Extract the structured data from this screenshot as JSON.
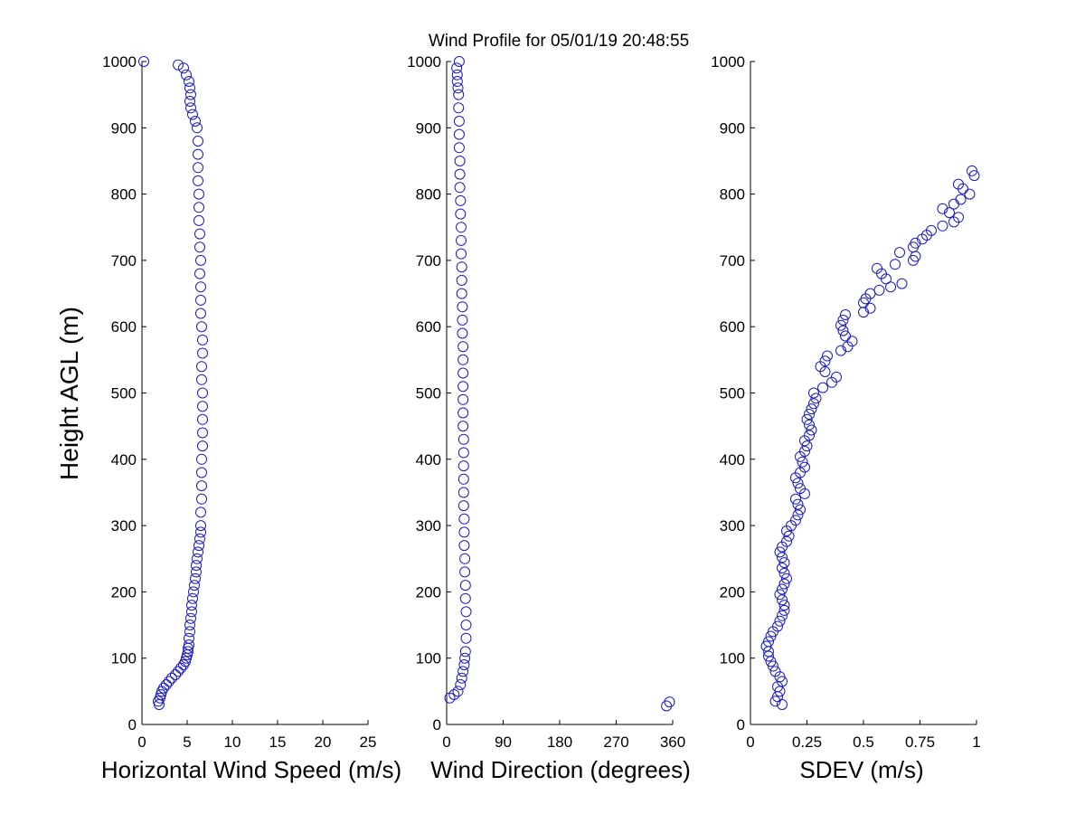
{
  "title": "Wind Profile for  05/01/19 20:48:55",
  "ylabel": "Height AGL (m)",
  "chart_data": [
    {
      "type": "scatter",
      "xlabel": "Horizontal Wind Speed (m/s)",
      "ylabel": "Height AGL (m)",
      "xlim": [
        0,
        25
      ],
      "ylim": [
        0,
        1000
      ],
      "xticks": [
        0,
        5,
        10,
        15,
        20,
        25
      ],
      "xtick_labels": [
        "0",
        "5",
        "10",
        "15",
        "20",
        "25"
      ],
      "yticks": [
        0,
        100,
        200,
        300,
        400,
        500,
        600,
        700,
        800,
        900,
        1000
      ],
      "ytick_labels": [
        "0",
        "100",
        "200",
        "300",
        "400",
        "500",
        "600",
        "700",
        "800",
        "900",
        "1000"
      ],
      "grid": false,
      "marker": "open-circle",
      "color": "#1a1acc",
      "points": [
        [
          1.9,
          30
        ],
        [
          1.8,
          35
        ],
        [
          2.0,
          40
        ],
        [
          2.1,
          45
        ],
        [
          2.2,
          50
        ],
        [
          2.4,
          55
        ],
        [
          2.7,
          60
        ],
        [
          3.0,
          65
        ],
        [
          3.3,
          70
        ],
        [
          3.7,
          75
        ],
        [
          4.0,
          80
        ],
        [
          4.3,
          85
        ],
        [
          4.6,
          90
        ],
        [
          4.8,
          95
        ],
        [
          4.9,
          100
        ],
        [
          5.0,
          105
        ],
        [
          5.1,
          110
        ],
        [
          5.1,
          115
        ],
        [
          5.2,
          120
        ],
        [
          5.2,
          130
        ],
        [
          5.3,
          140
        ],
        [
          5.3,
          150
        ],
        [
          5.4,
          160
        ],
        [
          5.5,
          170
        ],
        [
          5.5,
          180
        ],
        [
          5.6,
          190
        ],
        [
          5.7,
          200
        ],
        [
          5.8,
          210
        ],
        [
          5.9,
          220
        ],
        [
          6.0,
          230
        ],
        [
          6.0,
          240
        ],
        [
          6.1,
          250
        ],
        [
          6.2,
          260
        ],
        [
          6.3,
          270
        ],
        [
          6.4,
          280
        ],
        [
          6.5,
          290
        ],
        [
          6.5,
          300
        ],
        [
          6.5,
          320
        ],
        [
          6.6,
          340
        ],
        [
          6.6,
          360
        ],
        [
          6.6,
          380
        ],
        [
          6.6,
          400
        ],
        [
          6.7,
          420
        ],
        [
          6.7,
          440
        ],
        [
          6.7,
          460
        ],
        [
          6.7,
          480
        ],
        [
          6.7,
          500
        ],
        [
          6.6,
          520
        ],
        [
          6.6,
          540
        ],
        [
          6.7,
          560
        ],
        [
          6.7,
          580
        ],
        [
          6.6,
          600
        ],
        [
          6.5,
          620
        ],
        [
          6.5,
          640
        ],
        [
          6.5,
          660
        ],
        [
          6.4,
          680
        ],
        [
          6.5,
          700
        ],
        [
          6.4,
          720
        ],
        [
          6.4,
          740
        ],
        [
          6.3,
          760
        ],
        [
          6.3,
          780
        ],
        [
          6.3,
          800
        ],
        [
          6.2,
          820
        ],
        [
          6.2,
          840
        ],
        [
          6.2,
          860
        ],
        [
          6.2,
          880
        ],
        [
          6.1,
          900
        ],
        [
          5.9,
          910
        ],
        [
          5.6,
          920
        ],
        [
          5.4,
          930
        ],
        [
          5.3,
          940
        ],
        [
          5.4,
          950
        ],
        [
          5.3,
          960
        ],
        [
          5.2,
          970
        ],
        [
          4.9,
          980
        ],
        [
          4.6,
          990
        ],
        [
          4.0,
          995
        ],
        [
          0.2,
          1000
        ]
      ]
    },
    {
      "type": "scatter",
      "xlabel": "Wind Direction (degrees)",
      "xlim": [
        0,
        360
      ],
      "ylim": [
        0,
        1000
      ],
      "xticks": [
        0,
        90,
        180,
        270,
        360
      ],
      "xtick_labels": [
        "0",
        "90",
        "180",
        "270",
        "360"
      ],
      "yticks": [
        0,
        100,
        200,
        300,
        400,
        500,
        600,
        700,
        800,
        900,
        1000
      ],
      "ytick_labels": [
        "0",
        "100",
        "200",
        "300",
        "400",
        "500",
        "600",
        "700",
        "800",
        "900",
        "1000"
      ],
      "grid": false,
      "marker": "open-circle",
      "color": "#1a1acc",
      "points": [
        [
          350,
          28
        ],
        [
          355,
          34
        ],
        [
          5,
          40
        ],
        [
          12,
          45
        ],
        [
          18,
          50
        ],
        [
          22,
          60
        ],
        [
          24,
          70
        ],
        [
          26,
          80
        ],
        [
          28,
          90
        ],
        [
          29,
          100
        ],
        [
          30,
          110
        ],
        [
          31,
          130
        ],
        [
          31,
          150
        ],
        [
          31,
          170
        ],
        [
          30,
          190
        ],
        [
          30,
          210
        ],
        [
          29,
          230
        ],
        [
          29,
          250
        ],
        [
          28,
          270
        ],
        [
          28,
          290
        ],
        [
          28,
          310
        ],
        [
          27,
          330
        ],
        [
          27,
          350
        ],
        [
          27,
          370
        ],
        [
          27,
          390
        ],
        [
          27,
          410
        ],
        [
          27,
          430
        ],
        [
          26,
          450
        ],
        [
          26,
          470
        ],
        [
          26,
          490
        ],
        [
          26,
          510
        ],
        [
          26,
          530
        ],
        [
          26,
          550
        ],
        [
          26,
          570
        ],
        [
          25,
          590
        ],
        [
          25,
          610
        ],
        [
          25,
          630
        ],
        [
          24,
          650
        ],
        [
          24,
          670
        ],
        [
          24,
          690
        ],
        [
          23,
          710
        ],
        [
          23,
          730
        ],
        [
          23,
          750
        ],
        [
          22,
          770
        ],
        [
          22,
          790
        ],
        [
          21,
          810
        ],
        [
          21,
          830
        ],
        [
          21,
          850
        ],
        [
          20,
          870
        ],
        [
          20,
          890
        ],
        [
          20,
          910
        ],
        [
          19,
          930
        ],
        [
          19,
          950
        ],
        [
          18,
          960
        ],
        [
          17,
          970
        ],
        [
          17,
          980
        ],
        [
          16,
          990
        ],
        [
          20,
          1000
        ]
      ]
    },
    {
      "type": "scatter",
      "xlabel": "SDEV  (m/s)",
      "xlim": [
        0,
        1
      ],
      "ylim": [
        0,
        1000
      ],
      "xticks": [
        0,
        0.25,
        0.5,
        0.75,
        1
      ],
      "xtick_labels": [
        "0",
        "0.25",
        "0.5",
        "0.75",
        "1"
      ],
      "yticks": [
        0,
        100,
        200,
        300,
        400,
        500,
        600,
        700,
        800,
        900,
        1000
      ],
      "ytick_labels": [
        "0",
        "100",
        "200",
        "300",
        "400",
        "500",
        "600",
        "700",
        "800",
        "900",
        "1000"
      ],
      "grid": false,
      "marker": "open-circle",
      "color": "#1a1acc",
      "points": [
        [
          0.14,
          30
        ],
        [
          0.11,
          35
        ],
        [
          0.12,
          42
        ],
        [
          0.13,
          50
        ],
        [
          0.12,
          57
        ],
        [
          0.14,
          65
        ],
        [
          0.13,
          72
        ],
        [
          0.11,
          80
        ],
        [
          0.1,
          88
        ],
        [
          0.09,
          95
        ],
        [
          0.08,
          103
        ],
        [
          0.08,
          110
        ],
        [
          0.07,
          118
        ],
        [
          0.08,
          125
        ],
        [
          0.09,
          133
        ],
        [
          0.1,
          140
        ],
        [
          0.12,
          148
        ],
        [
          0.13,
          156
        ],
        [
          0.14,
          164
        ],
        [
          0.15,
          172
        ],
        [
          0.15,
          180
        ],
        [
          0.14,
          188
        ],
        [
          0.13,
          196
        ],
        [
          0.14,
          204
        ],
        [
          0.15,
          212
        ],
        [
          0.16,
          220
        ],
        [
          0.15,
          228
        ],
        [
          0.14,
          236
        ],
        [
          0.15,
          244
        ],
        [
          0.14,
          252
        ],
        [
          0.13,
          260
        ],
        [
          0.14,
          268
        ],
        [
          0.16,
          276
        ],
        [
          0.17,
          284
        ],
        [
          0.16,
          292
        ],
        [
          0.18,
          300
        ],
        [
          0.2,
          308
        ],
        [
          0.21,
          316
        ],
        [
          0.22,
          324
        ],
        [
          0.21,
          332
        ],
        [
          0.2,
          340
        ],
        [
          0.24,
          348
        ],
        [
          0.22,
          356
        ],
        [
          0.21,
          364
        ],
        [
          0.2,
          372
        ],
        [
          0.22,
          380
        ],
        [
          0.24,
          388
        ],
        [
          0.23,
          396
        ],
        [
          0.22,
          404
        ],
        [
          0.24,
          412
        ],
        [
          0.25,
          420
        ],
        [
          0.24,
          428
        ],
        [
          0.26,
          436
        ],
        [
          0.27,
          444
        ],
        [
          0.26,
          452
        ],
        [
          0.25,
          460
        ],
        [
          0.26,
          468
        ],
        [
          0.27,
          476
        ],
        [
          0.28,
          484
        ],
        [
          0.29,
          492
        ],
        [
          0.28,
          500
        ],
        [
          0.32,
          508
        ],
        [
          0.36,
          516
        ],
        [
          0.38,
          524
        ],
        [
          0.33,
          532
        ],
        [
          0.31,
          540
        ],
        [
          0.33,
          548
        ],
        [
          0.34,
          556
        ],
        [
          0.4,
          564
        ],
        [
          0.43,
          570
        ],
        [
          0.45,
          578
        ],
        [
          0.42,
          586
        ],
        [
          0.41,
          594
        ],
        [
          0.4,
          602
        ],
        [
          0.41,
          610
        ],
        [
          0.42,
          618
        ],
        [
          0.5,
          622
        ],
        [
          0.53,
          628
        ],
        [
          0.5,
          636
        ],
        [
          0.51,
          642
        ],
        [
          0.53,
          650
        ],
        [
          0.57,
          655
        ],
        [
          0.62,
          660
        ],
        [
          0.67,
          665
        ],
        [
          0.6,
          672
        ],
        [
          0.58,
          680
        ],
        [
          0.56,
          688
        ],
        [
          0.64,
          694
        ],
        [
          0.72,
          700
        ],
        [
          0.73,
          706
        ],
        [
          0.66,
          712
        ],
        [
          0.72,
          720
        ],
        [
          0.73,
          726
        ],
        [
          0.76,
          732
        ],
        [
          0.78,
          738
        ],
        [
          0.8,
          745
        ],
        [
          0.85,
          752
        ],
        [
          0.9,
          758
        ],
        [
          0.92,
          765
        ],
        [
          0.88,
          772
        ],
        [
          0.85,
          778
        ],
        [
          0.9,
          785
        ],
        [
          0.93,
          792
        ],
        [
          0.97,
          800
        ],
        [
          0.94,
          808
        ],
        [
          0.92,
          815
        ],
        [
          0.99,
          828
        ],
        [
          0.98,
          835
        ]
      ]
    }
  ]
}
